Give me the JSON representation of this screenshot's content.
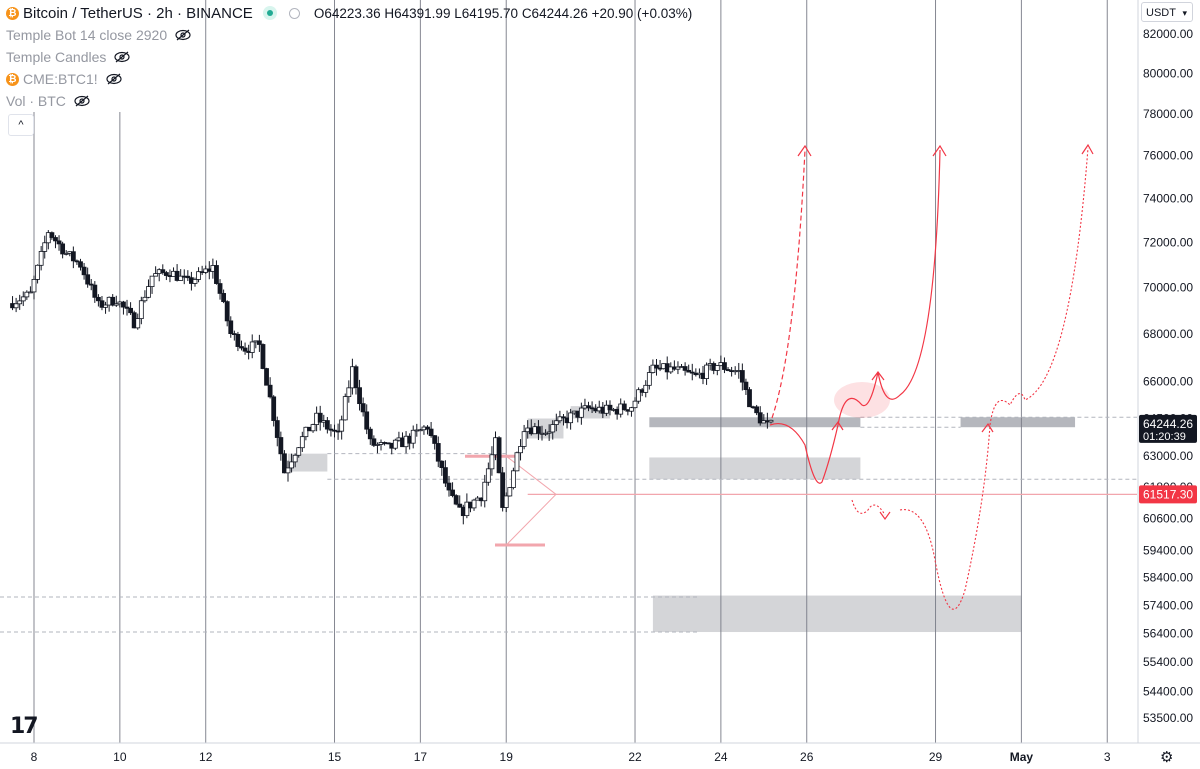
{
  "header": {
    "symbol_title": "Bitcoin / TetherUS · 2h · BINANCE",
    "open": "O64223.36",
    "high": "H64391.99",
    "low": "L64195.70",
    "close": "C64244.26",
    "change": "+20.90 (+0.03%)"
  },
  "indicators": [
    {
      "label": "Temple Bot 14 close 2920"
    },
    {
      "label": "Temple Candles"
    },
    {
      "label": "CME:BTC1!"
    },
    {
      "label": "Vol · BTC"
    }
  ],
  "currency_selector": {
    "label": "USDT"
  },
  "collapse_button": {
    "label": "^"
  },
  "price_labels": {
    "current_price": "64244.26",
    "countdown": "01:20:39",
    "red_level": "61517.30"
  },
  "colors": {
    "up": "#131722",
    "down": "#131722",
    "accent_red": "#f23645",
    "zone_gray": "#787b86",
    "grid": "#787b86"
  },
  "chart_data": {
    "type": "candlestick",
    "title": "Bitcoin / TetherUS · 2h · BINANCE",
    "y_axis": {
      "scale": "log",
      "ticks": [
        "82000.00",
        "80000.00",
        "78000.00",
        "76000.00",
        "74000.00",
        "72000.00",
        "70000.00",
        "68000.00",
        "66000.00",
        "63000.00",
        "61800.00",
        "60600.00",
        "59400.00",
        "58400.00",
        "57400.00",
        "56400.00",
        "55400.00",
        "54400.00",
        "53500.00"
      ],
      "hidden_tick": "64500.00",
      "range": [
        52800,
        83000
      ]
    },
    "x_axis": {
      "ticks": [
        "8",
        "10",
        "12",
        "15",
        "17",
        "19",
        "22",
        "24",
        "26",
        "29",
        "May",
        "3"
      ],
      "range": [
        "2024-04-07T12:00",
        "2024-05-04T00:00"
      ]
    },
    "price_path": [
      [
        "2024-04-07T12:00",
        69300
      ],
      [
        "2024-04-08T00:00",
        69700
      ],
      [
        "2024-04-08T10:00",
        72500
      ],
      [
        "2024-04-08T20:00",
        71500
      ],
      [
        "2024-04-09T04:00",
        71000
      ],
      [
        "2024-04-09T14:00",
        69200
      ],
      [
        "2024-04-10T00:00",
        69500
      ],
      [
        "2024-04-10T10:00",
        68500
      ],
      [
        "2024-04-10T20:00",
        70500
      ],
      [
        "2024-04-11T06:00",
        70700
      ],
      [
        "2024-04-11T16:00",
        70200
      ],
      [
        "2024-04-12T06:00",
        70900
      ],
      [
        "2024-04-12T16:00",
        68000
      ],
      [
        "2024-04-13T00:00",
        67400
      ],
      [
        "2024-04-13T08:00",
        67500
      ],
      [
        "2024-04-13T16:00",
        64600
      ],
      [
        "2024-04-13T22:00",
        62400
      ],
      [
        "2024-04-14T06:00",
        63500
      ],
      [
        "2024-04-14T16:00",
        64500
      ],
      [
        "2024-04-15T04:00",
        63800
      ],
      [
        "2024-04-15T12:00",
        66500
      ],
      [
        "2024-04-15T22:00",
        63500
      ],
      [
        "2024-04-16T08:00",
        63300
      ],
      [
        "2024-04-16T20:00",
        63700
      ],
      [
        "2024-04-17T06:00",
        64200
      ],
      [
        "2024-04-17T18:00",
        61500
      ],
      [
        "2024-04-18T00:00",
        60800
      ],
      [
        "2024-04-18T12:00",
        61500
      ],
      [
        "2024-04-18T20:00",
        63500
      ],
      [
        "2024-04-19T00:00",
        60900
      ],
      [
        "2024-04-19T06:00",
        62500
      ],
      [
        "2024-04-19T12:00",
        64200
      ],
      [
        "2024-04-20T00:00",
        64000
      ],
      [
        "2024-04-20T12:00",
        64500
      ],
      [
        "2024-04-21T00:00",
        64900
      ],
      [
        "2024-04-21T12:00",
        64800
      ],
      [
        "2024-04-22T00:00",
        65000
      ],
      [
        "2024-04-22T12:00",
        66500
      ],
      [
        "2024-04-23T00:00",
        66500
      ],
      [
        "2024-04-23T12:00",
        66200
      ],
      [
        "2024-04-24T00:00",
        66700
      ],
      [
        "2024-04-24T12:00",
        66400
      ],
      [
        "2024-04-24T20:00",
        64800
      ],
      [
        "2024-04-25T04:00",
        64200
      ]
    ],
    "zones": [
      {
        "from": "2024-04-13T22:00",
        "to": "2024-04-14T20:00",
        "low": 62400,
        "high": 63100
      },
      {
        "from": "2024-04-19T12:00",
        "to": "2024-04-20T08:00",
        "low": 63700,
        "high": 64500
      },
      {
        "from": "2024-04-20T12:00",
        "to": "2024-04-21T10:00",
        "low": 64500,
        "high": 65000
      },
      {
        "from": "2024-04-22T08:00",
        "to": "2024-04-27T06:00",
        "low": 64150,
        "high": 64550
      },
      {
        "from": "2024-04-22T08:00",
        "to": "2024-04-27T06:00",
        "low": 62100,
        "high": 62950
      },
      {
        "from": "2024-04-29T14:00",
        "to": "2024-05-02T06:00",
        "low": 64150,
        "high": 64550
      },
      {
        "from": "2024-04-22T10:00",
        "to": "2024-05-01T00:00",
        "low": 56450,
        "high": 57750
      }
    ],
    "red_level": 61517.3,
    "current_price": 64244.26,
    "annotations": [
      "Dashed red projection up to ~76500",
      "Solid red projection dipping to ~62100 then up to ~76500",
      "Dotted red projection dipping to ~56900 then up to ~76500"
    ]
  }
}
